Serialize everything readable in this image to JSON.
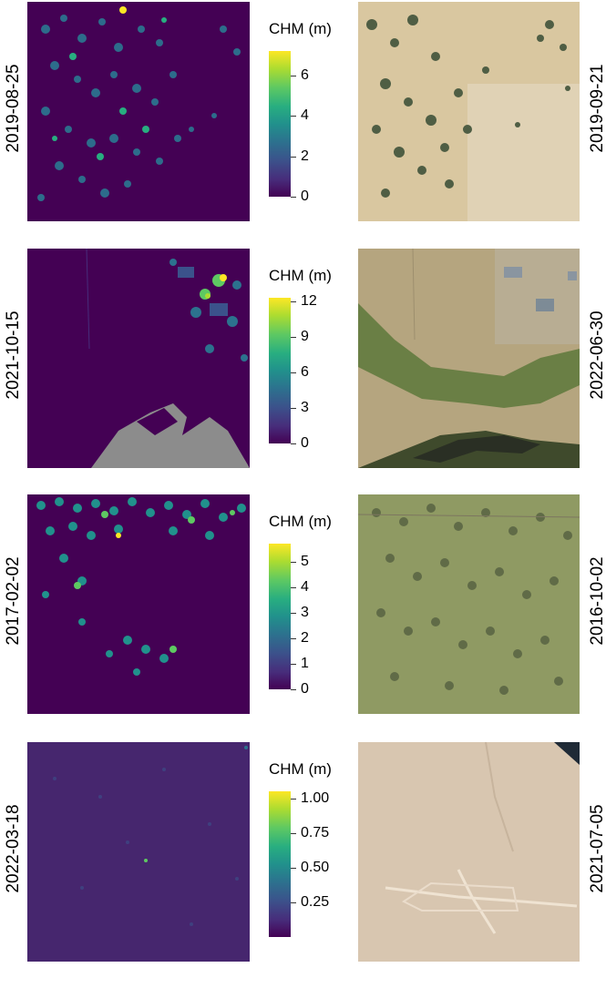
{
  "rows": [
    {
      "chm_date": "2019-08-25",
      "photo_date": "2019-09-21",
      "legend_title": "CHM (m)",
      "ticks": [
        "0",
        "2",
        "4",
        "6"
      ],
      "tick_values": [
        0,
        2,
        4,
        6
      ],
      "max": 7.2
    },
    {
      "chm_date": "2021-10-15",
      "photo_date": "2022-06-30",
      "legend_title": "CHM (m)",
      "ticks": [
        "0",
        "3",
        "6",
        "9",
        "12"
      ],
      "tick_values": [
        0,
        3,
        6,
        9,
        12
      ],
      "max": 12.3
    },
    {
      "chm_date": "2017-02-02",
      "photo_date": "2016-10-02",
      "legend_title": "CHM (m)",
      "ticks": [
        "0",
        "1",
        "2",
        "3",
        "4",
        "5"
      ],
      "tick_values": [
        0,
        1,
        2,
        3,
        4,
        5
      ],
      "max": 5.7
    },
    {
      "chm_date": "2022-03-18",
      "photo_date": "2021-07-05",
      "legend_title": "CHM (m)",
      "ticks": [
        "0.25",
        "0.50",
        "0.75",
        "1.00"
      ],
      "tick_values": [
        0.25,
        0.5,
        0.75,
        1.0
      ],
      "min": 0.0,
      "max": 1.05
    }
  ],
  "colors": {
    "viridis_low": "#440154",
    "viridis_high": "#fde725",
    "nodata_gray": "#8c8c8c"
  }
}
